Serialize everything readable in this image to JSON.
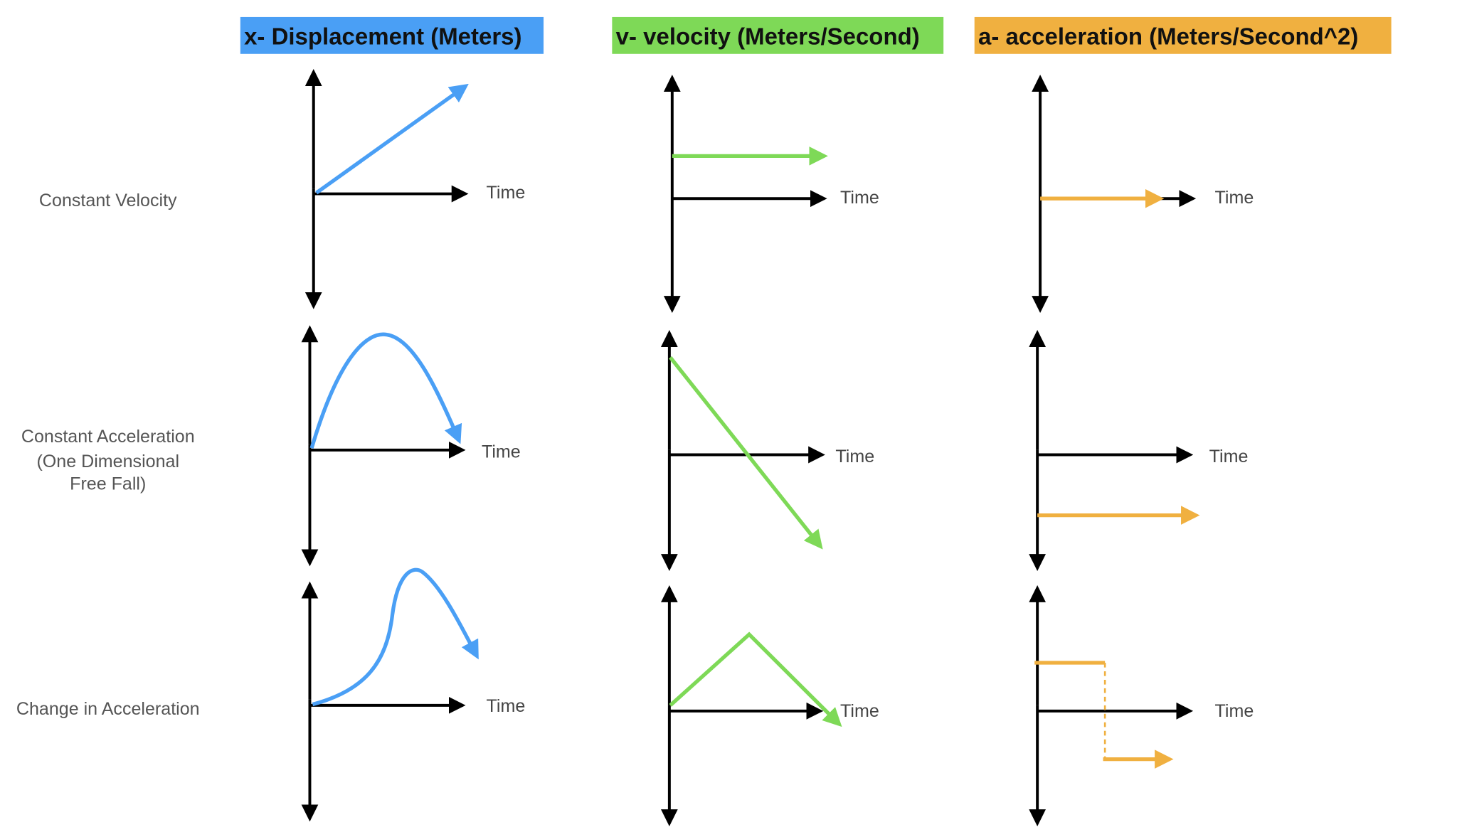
{
  "headers": {
    "displacement": "x- Displacement (Meters)",
    "velocity": "v- velocity (Meters/Second)",
    "acceleration": "a- acceleration (Meters/Second^2)"
  },
  "rows": {
    "constant_velocity": "Constant Velocity",
    "constant_acceleration": [
      "Constant Acceleration",
      "(One Dimensional",
      "Free Fall)"
    ],
    "change_in_acceleration": "Change in Acceleration"
  },
  "axis_label": "Time",
  "colors": {
    "displacement": "#4a9ff5",
    "velocity": "#7ed957",
    "acceleration": "#f0b040",
    "axis": "#000000"
  }
}
